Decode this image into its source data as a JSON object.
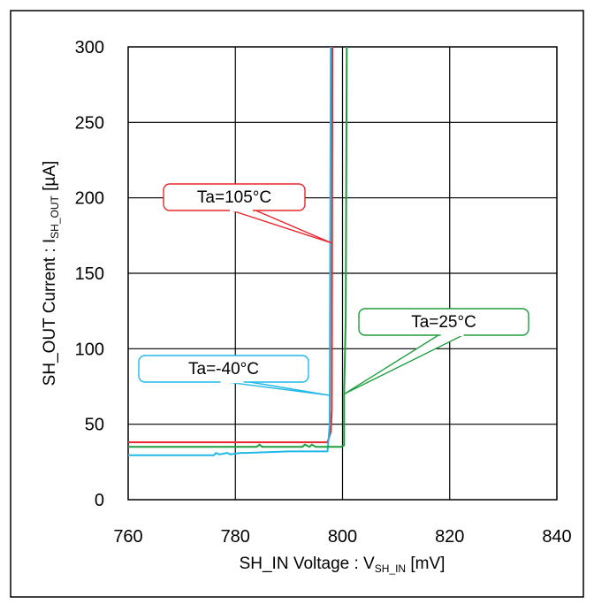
{
  "chart_data": {
    "type": "line",
    "xlabel": {
      "main": "SH_IN Voltage : V",
      "sub": "SH_IN",
      "suffix": " [mV]"
    },
    "ylabel": {
      "main": "SH_OUT Current : I",
      "sub": "SH_OUT",
      "suffix": " [µA]"
    },
    "xlim": [
      760,
      840
    ],
    "ylim": [
      0,
      300
    ],
    "xticks": [
      760,
      780,
      800,
      820,
      840
    ],
    "yticks": [
      0,
      50,
      100,
      150,
      200,
      250,
      300
    ],
    "grid": true,
    "series": [
      {
        "name": "Ta=105°C",
        "color": "#e8262b",
        "points": [
          [
            760,
            38
          ],
          [
            797.2,
            38
          ],
          [
            797.8,
            45
          ],
          [
            798.0,
            60
          ],
          [
            798.1,
            300
          ]
        ]
      },
      {
        "name": "Ta=-40°C",
        "color": "#20b8e8",
        "points": [
          [
            760,
            29.5
          ],
          [
            776,
            29.5
          ],
          [
            776.4,
            31
          ],
          [
            777,
            30
          ],
          [
            778.5,
            31
          ],
          [
            779,
            30
          ],
          [
            781,
            31
          ],
          [
            782,
            31
          ],
          [
            790,
            32
          ],
          [
            797.2,
            32
          ],
          [
            797.4,
            40
          ],
          [
            797.6,
            50
          ],
          [
            797.8,
            300
          ]
        ]
      },
      {
        "name": "Ta=25°C",
        "color": "#1e9e3e",
        "points": [
          [
            760,
            35
          ],
          [
            784,
            35
          ],
          [
            784.5,
            36.5
          ],
          [
            785,
            35
          ],
          [
            792.5,
            35
          ],
          [
            793,
            36.5
          ],
          [
            793.8,
            35
          ],
          [
            794.3,
            36.5
          ],
          [
            795,
            35
          ],
          [
            799.7,
            35
          ],
          [
            800.3,
            36
          ],
          [
            800.3,
            70
          ],
          [
            800.6,
            120
          ],
          [
            800.8,
            300
          ]
        ]
      }
    ],
    "annotations": [
      {
        "text": "Ta=105°C",
        "series": 0,
        "target": [
          798.0,
          170
        ]
      },
      {
        "text": "Ta=25°C",
        "series": 2,
        "target": [
          800.3,
          70
        ]
      },
      {
        "text": "Ta=-40°C",
        "series": 1,
        "target": [
          797.8,
          69
        ]
      }
    ]
  }
}
